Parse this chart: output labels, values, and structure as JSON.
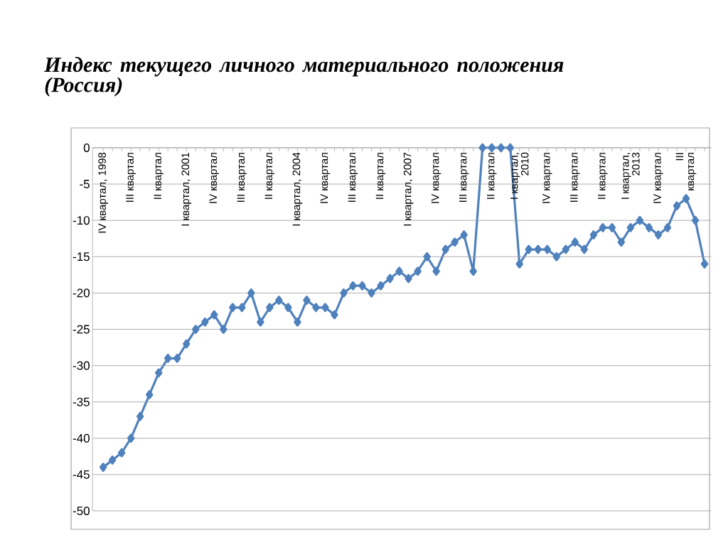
{
  "chart_data": {
    "type": "line",
    "title": "Индекс текущего личного материального положения (Россия)",
    "categories": [
      "IV квартал, 1998",
      null,
      null,
      "III квартал",
      null,
      null,
      "II квартал",
      null,
      null,
      "I квартал, 2001",
      null,
      null,
      "IV квартал",
      null,
      null,
      "III квартал",
      null,
      null,
      "II квартал",
      null,
      null,
      "I квартал, 2004",
      null,
      null,
      "IV квартал",
      null,
      null,
      "III квартал",
      null,
      null,
      "II квартал",
      null,
      null,
      "I квартал, 2007",
      null,
      null,
      "IV квартал",
      null,
      null,
      "III квартал",
      null,
      null,
      "II квартал",
      null,
      null,
      "I квартал, 2010",
      null,
      null,
      "IV квартал",
      null,
      null,
      "III квартал",
      null,
      null,
      "II квартал",
      null,
      null,
      "I квартал, 2013",
      null,
      null,
      "IV квартал",
      null,
      null,
      "III квартал",
      null,
      null
    ],
    "series": [
      {
        "color": "#4f81bd",
        "values": [
          -44,
          -43,
          -42,
          -40,
          -37,
          -34,
          -31,
          -29,
          -29,
          -27,
          -25,
          -24,
          -23,
          -25,
          -22,
          -22,
          -20,
          -24,
          -22,
          -21,
          -22,
          -24,
          -21,
          -22,
          -22,
          -23,
          -20,
          -19,
          -19,
          -20,
          -19,
          -18,
          -17,
          -18,
          -17,
          -15,
          -17,
          -14,
          -13,
          -12,
          -17,
          0,
          0,
          0,
          0,
          -16,
          -14,
          -14,
          -14,
          -15,
          -14,
          -13,
          -14,
          -12,
          -11,
          -11,
          -13,
          -11,
          -10,
          -11,
          -12,
          -11,
          -8,
          -7,
          -10,
          -16
        ]
      }
    ],
    "ylim": [
      -50,
      0
    ],
    "yticks": [
      -50,
      -45,
      -40,
      -35,
      -30,
      -25,
      -20,
      -15,
      -10,
      -5,
      0
    ],
    "grid": "y",
    "marker": "diamond",
    "line_style": "solid"
  }
}
